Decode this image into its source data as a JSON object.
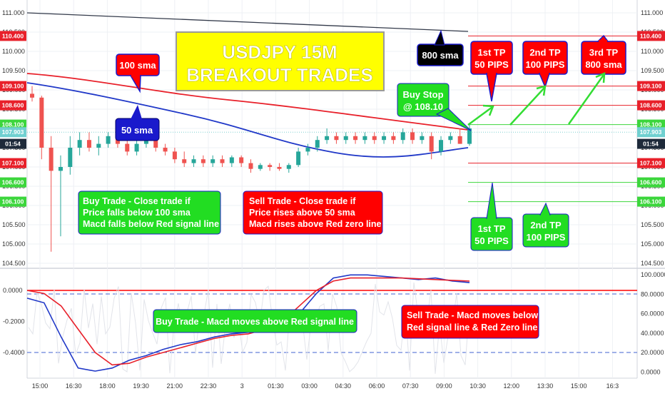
{
  "chart_data": {
    "type": "candlestick",
    "symbol_timeframe": "USDJPY 15M",
    "title_line1": "USDJPY 15M",
    "title_line2": "BREAKOUT TRADES",
    "price_axis": {
      "ticks": [
        "111.000",
        "110.500",
        "110.000",
        "109.500",
        "109.000",
        "108.500",
        "108.000",
        "107.500",
        "107.000",
        "106.500",
        "106.000",
        "105.500",
        "105.000",
        "104.500"
      ],
      "ylim": [
        104.4,
        111.1
      ]
    },
    "price_tags": [
      {
        "label": "110.400",
        "value": 110.4,
        "color": "#e8202a"
      },
      {
        "label": "109.100",
        "value": 109.1,
        "color": "#e8202a"
      },
      {
        "label": "108.600",
        "value": 108.6,
        "color": "#e8202a"
      },
      {
        "label": "108.100",
        "value": 108.1,
        "color": "#3cd63c"
      },
      {
        "label": "107.903",
        "value": 107.903,
        "color": "#70d0d0"
      },
      {
        "label": "01:54",
        "value": 107.6,
        "color": "#1e2a3a"
      },
      {
        "label": "107.100",
        "value": 107.1,
        "color": "#e8202a"
      },
      {
        "label": "106.600",
        "value": 106.6,
        "color": "#3cd63c"
      },
      {
        "label": "106.100",
        "value": 106.1,
        "color": "#3cd63c"
      }
    ],
    "macd_axis_left": [
      "0.0000",
      "-0.2000",
      "-0.4000"
    ],
    "macd_axis_right": [
      "100.0000",
      "80.0000",
      "60.0000",
      "40.0000",
      "20.0000",
      "0.0000"
    ],
    "time_ticks": [
      "15:00",
      "16:30",
      "18:00",
      "19:30",
      "21:00",
      "22:30",
      "3",
      "01:30",
      "03:00",
      "04:30",
      "06:00",
      "07:30",
      "09:00",
      "10:30",
      "12:00",
      "13:30",
      "15:00",
      "16:3"
    ],
    "series": [
      {
        "name": "100 sma",
        "color": "#e8202a"
      },
      {
        "name": "50 sma",
        "color": "#2038c8"
      },
      {
        "name": "800 sma",
        "color": "#333a4a"
      }
    ],
    "candles": [
      [
        108.9,
        109.1,
        108.7,
        108.8
      ],
      [
        108.8,
        108.85,
        107.2,
        107.5
      ],
      [
        107.5,
        107.8,
        104.8,
        106.9
      ],
      [
        106.9,
        107.3,
        105.2,
        107.0
      ],
      [
        107.0,
        107.8,
        106.8,
        107.5
      ],
      [
        107.5,
        107.9,
        107.3,
        107.7
      ],
      [
        107.7,
        107.9,
        107.4,
        107.5
      ],
      [
        107.5,
        107.8,
        107.3,
        107.6
      ],
      [
        107.6,
        107.9,
        107.5,
        107.8
      ],
      [
        107.8,
        107.9,
        107.5,
        107.6
      ],
      [
        107.6,
        107.7,
        107.3,
        107.4
      ],
      [
        107.4,
        107.7,
        107.3,
        107.6
      ],
      [
        107.6,
        107.8,
        107.5,
        107.7
      ],
      [
        107.7,
        107.8,
        107.4,
        107.5
      ],
      [
        107.5,
        107.6,
        107.3,
        107.4
      ],
      [
        107.4,
        107.5,
        107.1,
        107.2
      ],
      [
        107.2,
        107.4,
        107.0,
        107.1
      ],
      [
        107.1,
        107.3,
        107.0,
        107.2
      ],
      [
        107.2,
        107.3,
        107.0,
        107.1
      ],
      [
        107.1,
        107.3,
        107.0,
        107.2
      ],
      [
        107.2,
        107.3,
        107.0,
        107.1
      ],
      [
        107.1,
        107.3,
        107.0,
        107.25
      ],
      [
        107.25,
        107.3,
        107.0,
        107.1
      ],
      [
        107.1,
        107.2,
        106.85,
        106.95
      ],
      [
        106.95,
        107.1,
        106.9,
        107.05
      ],
      [
        107.05,
        107.1,
        106.9,
        107.0
      ],
      [
        107.0,
        107.1,
        106.9,
        106.95
      ],
      [
        106.95,
        107.1,
        106.85,
        107.05
      ],
      [
        107.05,
        107.5,
        107.0,
        107.4
      ],
      [
        107.4,
        107.6,
        107.3,
        107.5
      ],
      [
        107.5,
        107.8,
        107.4,
        107.7
      ],
      [
        107.7,
        108.0,
        107.6,
        107.8
      ],
      [
        107.8,
        107.9,
        107.6,
        107.7
      ],
      [
        107.7,
        107.9,
        107.6,
        107.8
      ],
      [
        107.8,
        107.9,
        107.6,
        107.7
      ],
      [
        107.7,
        107.9,
        107.6,
        107.8
      ],
      [
        107.8,
        107.9,
        107.6,
        107.7
      ],
      [
        107.7,
        107.9,
        107.6,
        107.8
      ],
      [
        107.8,
        107.9,
        107.6,
        107.7
      ],
      [
        107.7,
        108.0,
        107.6,
        107.9
      ],
      [
        107.9,
        108.0,
        107.6,
        107.7
      ],
      [
        107.7,
        107.9,
        107.6,
        107.8
      ],
      [
        107.8,
        107.9,
        107.2,
        107.4
      ],
      [
        107.4,
        107.8,
        107.3,
        107.7
      ],
      [
        107.7,
        107.9,
        107.6,
        107.8
      ],
      [
        107.8,
        108.0,
        107.6,
        107.6
      ],
      [
        107.6,
        108.1,
        107.55,
        108.0
      ]
    ],
    "macd_series": [
      {
        "name": "MACD",
        "color": "#2038c8",
        "values": [
          -0.05,
          -0.08,
          -0.3,
          -0.5,
          -0.52,
          -0.5,
          -0.45,
          -0.42,
          -0.38,
          -0.35,
          -0.33,
          -0.3,
          -0.28,
          -0.27,
          -0.25,
          -0.22,
          -0.15,
          -0.02,
          0.08,
          0.1,
          0.1,
          0.09,
          0.08,
          0.07,
          0.08,
          0.06,
          0.05
        ]
      },
      {
        "name": "Signal",
        "color": "#e8202a",
        "values": [
          0.0,
          -0.02,
          -0.1,
          -0.25,
          -0.4,
          -0.48,
          -0.47,
          -0.43,
          -0.4,
          -0.37,
          -0.34,
          -0.31,
          -0.29,
          -0.28,
          -0.25,
          -0.2,
          -0.1,
          0.0,
          0.06,
          0.08,
          0.08,
          0.08,
          0.08,
          0.075,
          0.07,
          0.065,
          0.06
        ]
      }
    ]
  },
  "callouts": {
    "sma100": "100 sma",
    "sma50": "50 sma",
    "sma800": "800 sma",
    "buy_stop_line1": "Buy Stop",
    "buy_stop_line2": "@ 108.10",
    "tp1_up_line1": "1st TP",
    "tp1_up_line2": "50 PIPS",
    "tp2_up_line1": "2nd TP",
    "tp2_up_line2": "100 PIPS",
    "tp3_up_line1": "3rd TP",
    "tp3_up_line2": "800 sma",
    "tp1_dn_line1": "1st TP",
    "tp1_dn_line2": "50 PIPS",
    "tp2_dn_line1": "2nd TP",
    "tp2_dn_line2": "100 PIPS",
    "buy_rule_line1": "Buy Trade - Close trade if",
    "buy_rule_line2": "Price falls below 100 sma",
    "buy_rule_line3": "Macd falls below Red signal line",
    "sell_rule_line1": "Sell Trade - Close trade if",
    "sell_rule_line2": "Price rises above 50 sma",
    "sell_rule_line3": "Macd rises above Red zero line",
    "macd_buy": "Buy Trade - Macd moves above Red signal line",
    "macd_sell_line1": "Sell Trade - Macd moves below",
    "macd_sell_line2": "Red signal line & Red Zero line"
  },
  "colors": {
    "up": "#26a69a",
    "down": "#ef5350",
    "title_bg": "#ffff00",
    "title_fg": "#ffffff",
    "red_box": "#ff0000",
    "green_box": "#22dd22",
    "blue_box": "#1a1acc",
    "black_box": "#000000"
  }
}
